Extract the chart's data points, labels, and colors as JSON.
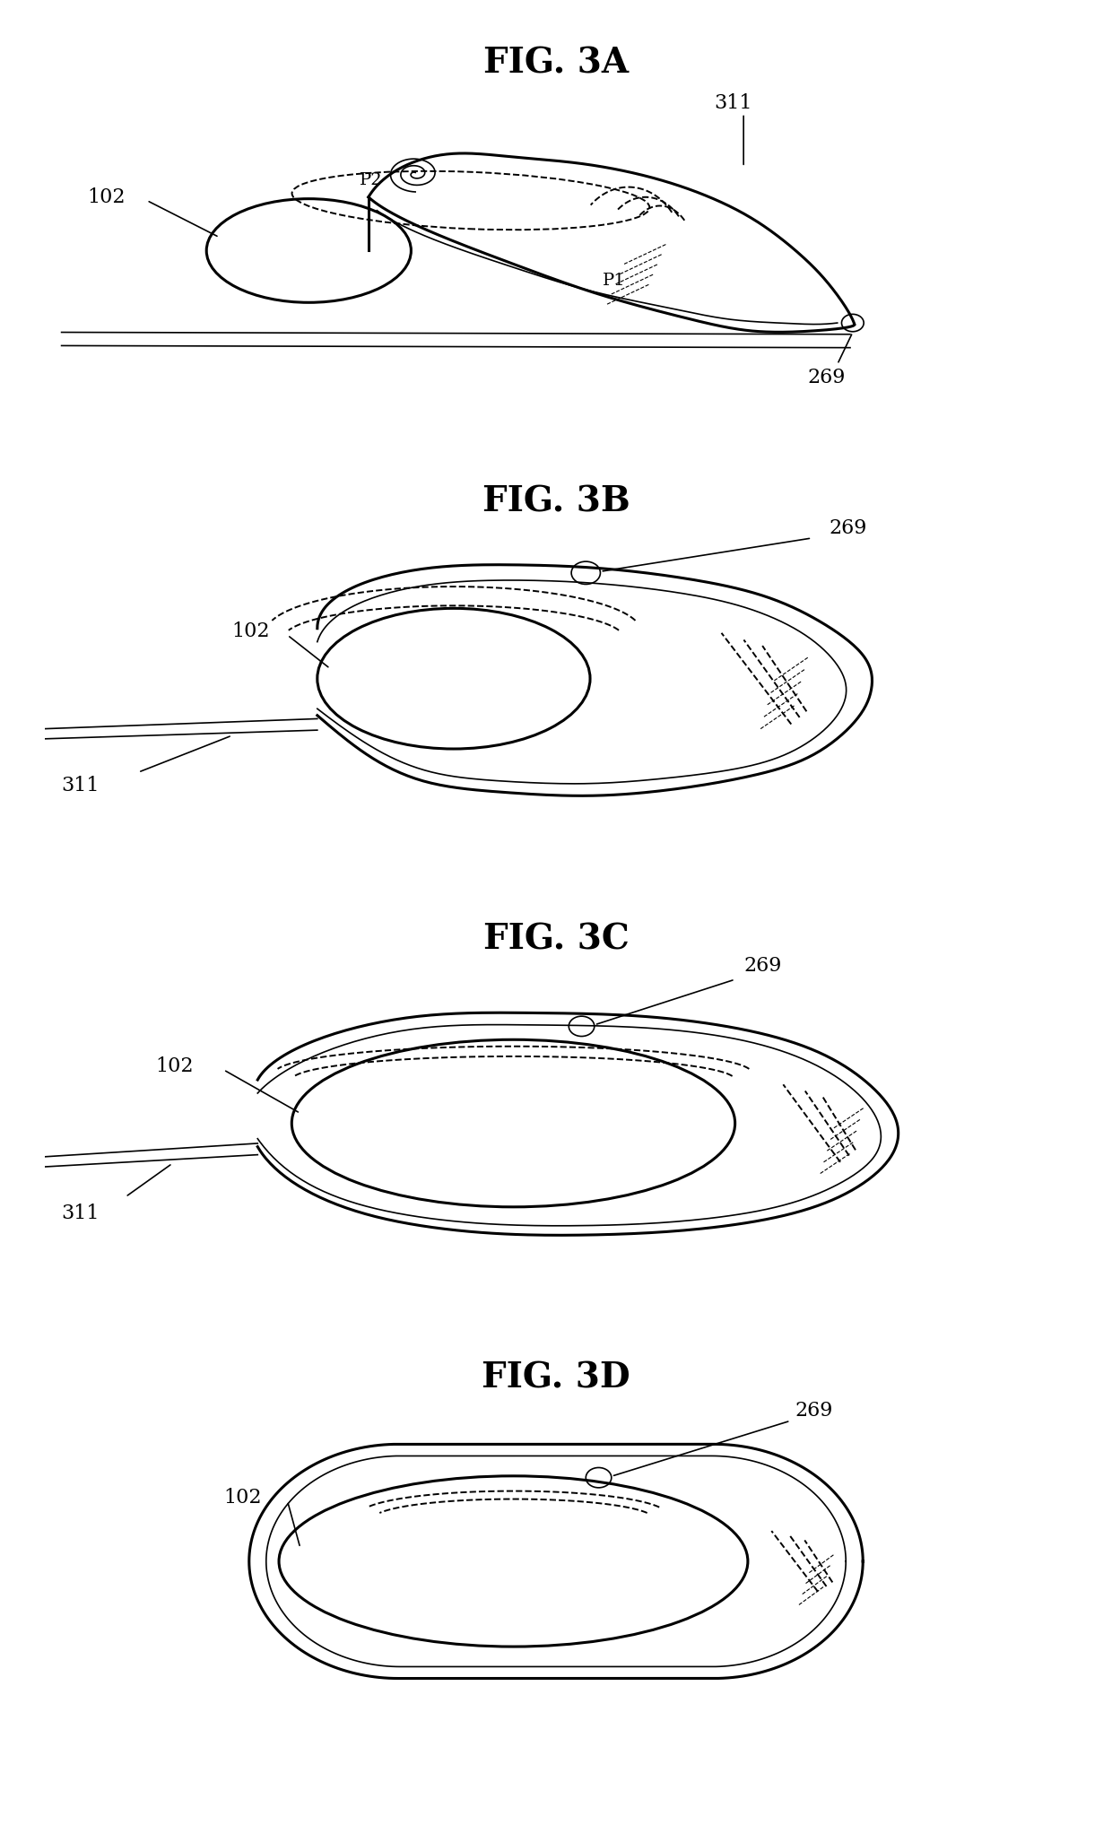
{
  "bg_color": "#ffffff",
  "line_color": "#000000",
  "lw_thick": 2.2,
  "lw_med": 1.6,
  "lw_thin": 1.2,
  "lw_dashed": 1.4,
  "fig_titles": [
    "FIG. 3A",
    "FIG. 3B",
    "FIG. 3C",
    "FIG. 3D"
  ],
  "title_fontsize": 28,
  "label_fontsize": 16
}
